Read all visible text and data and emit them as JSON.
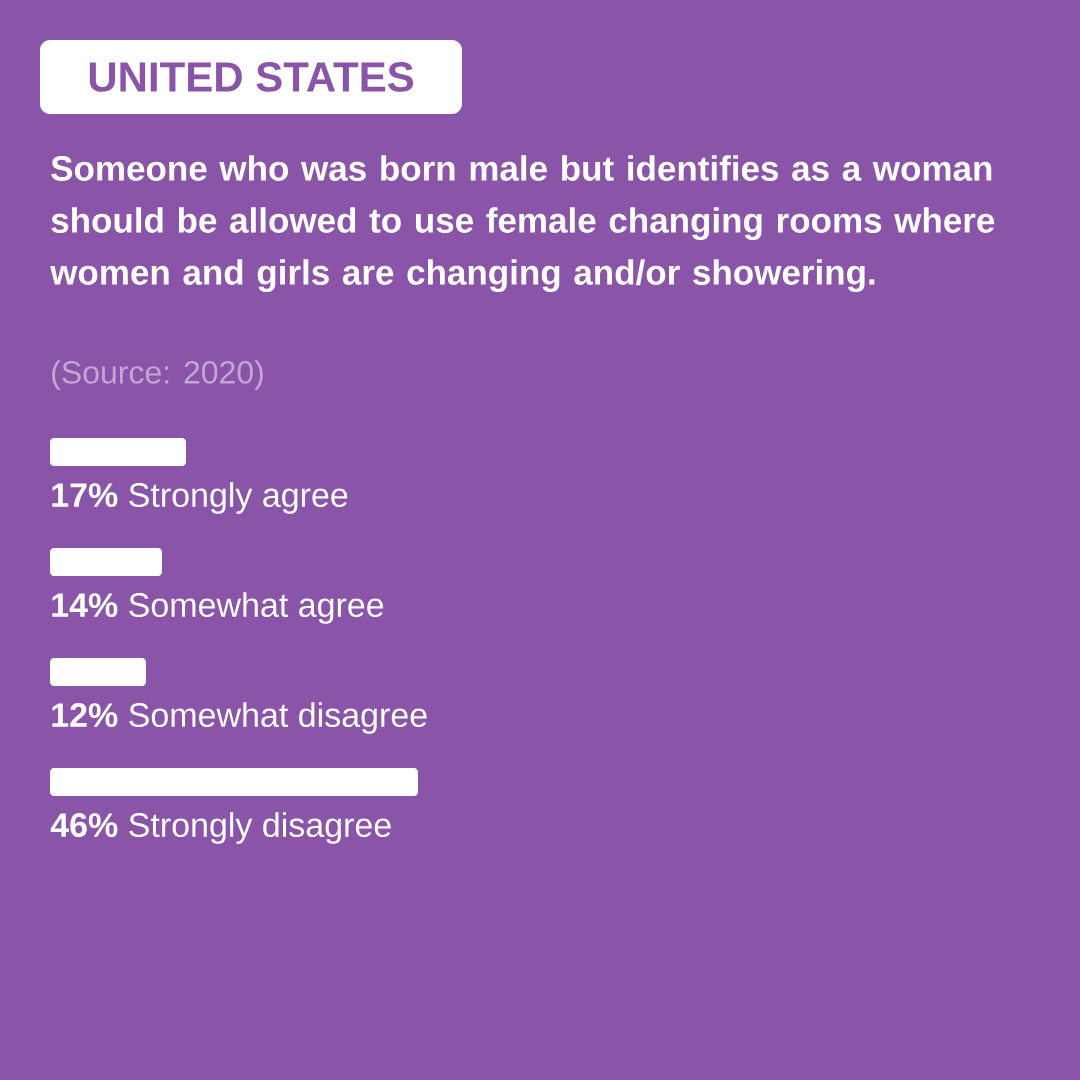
{
  "chart_data": {
    "type": "bar",
    "orientation": "horizontal",
    "subtitle": "UNITED STATES",
    "title": "Someone who was born male but identifies as a woman should be allowed to use female changing rooms where women and girls are changing and/or showering.",
    "annotations": [
      "(Source: 2020)"
    ],
    "categories": [
      "Strongly agree",
      "Somewhat agree",
      "Somewhat disagree",
      "Strongly disagree"
    ],
    "values": [
      17,
      14,
      12,
      46
    ],
    "value_labels": [
      "17%",
      "14%",
      "12%",
      "46%"
    ],
    "color": "#ffffff"
  }
}
